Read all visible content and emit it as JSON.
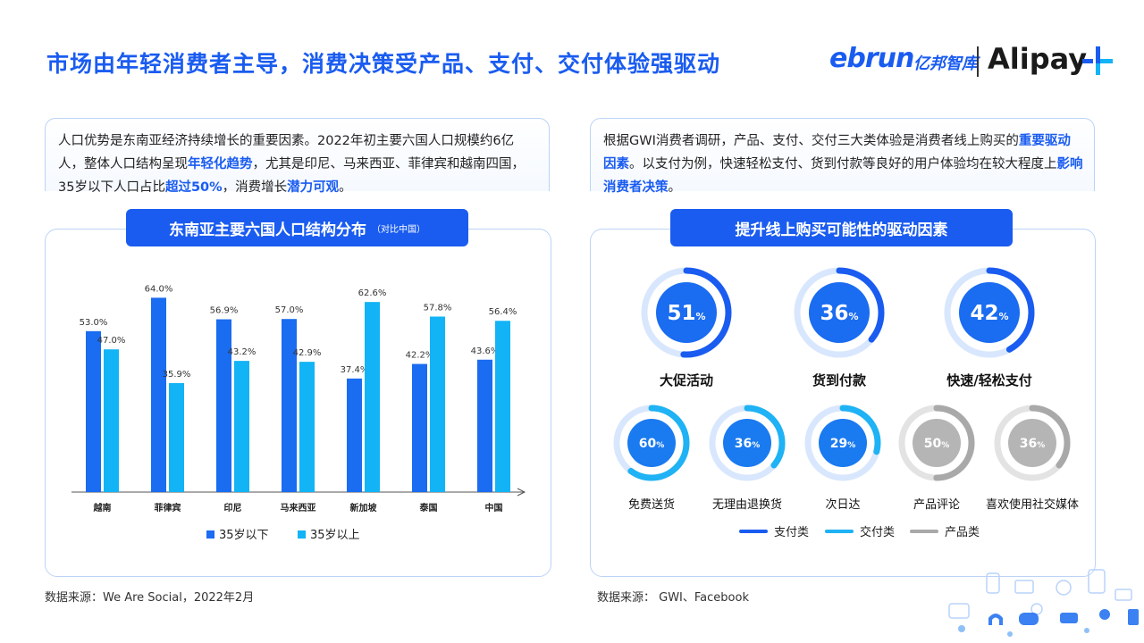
{
  "title": "市场由年轻消费者主导，消费决策受产品、支付、交付体验强驱动",
  "logos": {
    "ebrun": "ebrun",
    "ebrun_cn": "亿邦智库",
    "alipay": "Alipay"
  },
  "left_text": {
    "p1": "人口优势是东南亚经济持续增长的重要因素。2022年初主要六国人口规模约6亿人，整体人口结构呈现",
    "h1": "年轻化趋势",
    "p2": "，尤其是印尼、马来西亚、菲律宾和越南四国，35岁以下人口占比",
    "h2": "超过50%",
    "p3": "，消费增长",
    "h3": "潜力可观",
    "p4": "。"
  },
  "right_text": {
    "p1": "根据GWI消费者调研，产品、支付、交付三大类体验是消费者线上购买的",
    "h1": "重要驱动因素",
    "p2": "。以支付为例，快速轻松支付、货到付款等良好的用户体验均在较大程度上",
    "h2": "影响消费者决策",
    "p3": "。"
  },
  "left_panel": {
    "title": "东南亚主要六国人口结构分布",
    "subtitle": "（对比中国）"
  },
  "right_panel": {
    "title": "提升线上购买可能性的驱动因素"
  },
  "sources": {
    "left": "数据来源：We Are Social，2022年2月",
    "right": "数据来源： GWI、Facebook"
  },
  "colors": {
    "accent": "#1a5cf0",
    "bar_under35": "#1a6cf0",
    "bar_over35": "#12b4f5",
    "delivery": "#1fb2f4",
    "product": "#a9a9a9"
  },
  "chart_data": [
    {
      "type": "bar",
      "categories": [
        "越南",
        "菲律宾",
        "印尼",
        "马来西亚",
        "新加坡",
        "泰国",
        "中国"
      ],
      "series": [
        {
          "name": "35岁以下",
          "values": [
            53.0,
            64.0,
            56.9,
            57.0,
            37.4,
            42.2,
            43.6
          ],
          "labels": [
            "53.0%",
            "64.0%",
            "56.9%",
            "57.0%",
            "37.4%",
            "42.2%",
            "43.6%"
          ]
        },
        {
          "name": "35岁以上",
          "values": [
            47.0,
            35.9,
            43.2,
            42.9,
            62.6,
            57.8,
            56.4
          ],
          "labels": [
            "47.0%",
            "35.9%",
            "43.2%",
            "42.9%",
            "62.6%",
            "57.8%",
            "56.4%"
          ]
        }
      ],
      "unit": "%",
      "ylim": [
        0,
        70
      ],
      "legend": "bottom",
      "grid": false
    },
    {
      "type": "pie",
      "style": "donut-rings",
      "items": [
        {
          "label": "大促活动",
          "value": 51,
          "category": "支付类"
        },
        {
          "label": "货到付款",
          "value": 36,
          "category": "支付类"
        },
        {
          "label": "快速/轻松支付",
          "value": 42,
          "category": "支付类"
        },
        {
          "label": "免费送货",
          "value": 60,
          "category": "交付类"
        },
        {
          "label": "无理由退换货",
          "value": 36,
          "category": "交付类"
        },
        {
          "label": "次日达",
          "value": 29,
          "category": "交付类"
        },
        {
          "label": "产品评论",
          "value": 50,
          "category": "产品类"
        },
        {
          "label": "喜欢使用社交媒体",
          "value": 36,
          "category": "产品类"
        }
      ],
      "legend": [
        "支付类",
        "交付类",
        "产品类"
      ],
      "unit": "%"
    }
  ]
}
